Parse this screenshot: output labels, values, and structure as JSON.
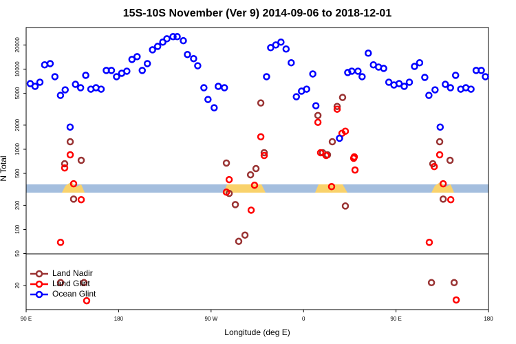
{
  "chart_data": {
    "type": "scatter",
    "title": "15S-10S November (Ver 9)   2014-09-06 to 2018-12-01",
    "x_label": "Longitude (deg E)",
    "y_label": "N Total",
    "log_y": true,
    "legend": "lower left",
    "xlim": [
      90,
      540
    ],
    "xticks": [
      {
        "value": 90,
        "label": "90 E"
      },
      180,
      {
        "value": 270,
        "label": "90 W"
      },
      {
        "value": 360,
        "label": "0"
      },
      {
        "value": 450,
        "label": "90 E"
      },
      {
        "value": 540,
        "label": "180"
      }
    ],
    "ylim": [
      10,
      33000
    ],
    "yticks": [
      20,
      50,
      100,
      200,
      500,
      1000,
      2000,
      5000,
      10000,
      20000
    ],
    "series": [
      {
        "name": "Land Nadir",
        "color": "#993333",
        "x": [
          127.5,
          132.9,
          136.2,
          143.6,
          146.3,
          123.5,
          284.9,
          287.6,
          293.6,
          296.9,
          303,
          308.4,
          313.7,
          318.4,
          321.7,
          374,
          378.6,
          383.3,
          388,
          392.7,
          398,
          400.7,
          484.5,
          485.8,
          492.5,
          495.9,
          502.6,
          506.6
        ],
        "values": [
          659,
          1240,
          239,
          728,
          21.7,
          21.7,
          673,
          281,
          204,
          71,
          85,
          480,
          574,
          3780,
          906,
          2640,
          906,
          853,
          1240,
          3420,
          4430,
          196,
          21.7,
          659,
          1240,
          239,
          728,
          21.7
        ]
      },
      {
        "name": "Land Glint",
        "color": "#ff0000",
        "x": [
          123.5,
          127.5,
          132.9,
          136.2,
          143.6,
          148.9,
          284.9,
          287.6,
          309,
          312.3,
          318.4,
          321.7,
          374,
          376.6,
          382,
          387.3,
          392.7,
          397.4,
          400.7,
          408.8,
          409.4,
          410.1,
          482.4,
          487.2,
          492.5,
          495.9,
          503.3,
          508.6
        ],
        "values": [
          69,
          585,
          853,
          371,
          235,
          12.9,
          292,
          418,
          174,
          356,
          1430,
          836,
          2170,
          906,
          836,
          342,
          3160,
          1580,
          1680,
          773,
          804,
          551,
          69,
          608,
          853,
          371,
          235,
          13.2
        ]
      },
      {
        "name": "Ocean Glint",
        "color": "#0000ff",
        "x": [
          94,
          98.7,
          103.4,
          108,
          113.4,
          118,
          123.4,
          128,
          132.8,
          138,
          143,
          148,
          153,
          158,
          163,
          168,
          173,
          178,
          183,
          188,
          193,
          198,
          203,
          208,
          213,
          218,
          223,
          227,
          233,
          237,
          243,
          247,
          253,
          257,
          263,
          267,
          273,
          277,
          283,
          324,
          328,
          333,
          338,
          343,
          348,
          353,
          358,
          363,
          369,
          372,
          395,
          403,
          407,
          413,
          417,
          423,
          428,
          433,
          438,
          443,
          448,
          453,
          458,
          463,
          468,
          473,
          478,
          482,
          488,
          493,
          498,
          503,
          508,
          513,
          518,
          523,
          528,
          533,
          537
        ],
        "values": [
          6590,
          6090,
          6860,
          11300,
          11700,
          8040,
          4700,
          5510,
          1890,
          6460,
          5850,
          8360,
          5620,
          5850,
          5620,
          9620,
          9620,
          8040,
          8870,
          9420,
          13200,
          14300,
          9620,
          11700,
          17400,
          19200,
          21700,
          23900,
          25400,
          25400,
          22600,
          15200,
          13500,
          11000,
          5850,
          4180,
          3290,
          6090,
          5850,
          8040,
          18500,
          20000,
          21700,
          17800,
          12000,
          4520,
          5300,
          5620,
          8700,
          3490,
          1370,
          9060,
          9420,
          9420,
          8040,
          15800,
          11300,
          10600,
          10200,
          6860,
          6340,
          6590,
          6090,
          6860,
          10800,
          12000,
          7880,
          4700,
          5510,
          1890,
          6460,
          5850,
          8360,
          5620,
          5850,
          5620,
          9620,
          9620,
          8040
        ]
      }
    ]
  }
}
